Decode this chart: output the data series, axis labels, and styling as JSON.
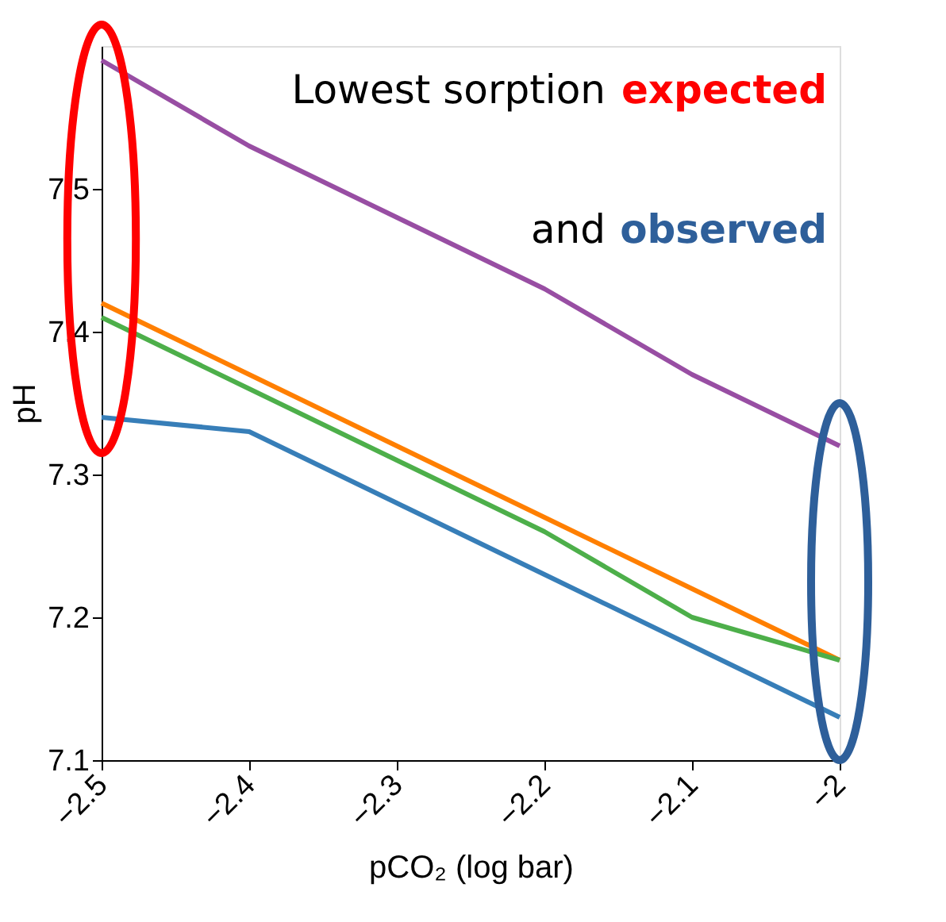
{
  "chart_data": {
    "type": "line",
    "xlabel": "pCO₂ (log bar)",
    "ylabel": "pH",
    "x": [
      -2.5,
      -2.4,
      -2.3,
      -2.2,
      -2.1,
      -2.0
    ],
    "series": [
      {
        "color": "#984ea3",
        "values": [
          7.59,
          7.53,
          7.48,
          7.43,
          7.37,
          7.32
        ]
      },
      {
        "color": "#ff7f00",
        "values": [
          7.42,
          7.37,
          7.32,
          7.27,
          7.22,
          7.17
        ]
      },
      {
        "color": "#4daf4a",
        "values": [
          7.41,
          7.36,
          7.31,
          7.26,
          7.2,
          7.17
        ]
      },
      {
        "color": "#377eb8",
        "values": [
          7.34,
          7.33,
          7.28,
          7.23,
          7.18,
          7.13
        ]
      }
    ],
    "xlim": [
      -2.5,
      -2.0
    ],
    "xticks": [
      -2.5,
      -2.4,
      -2.3,
      -2.2,
      -2.1,
      -2.0
    ],
    "ylim": [
      7.1,
      7.6
    ],
    "yticks": [
      7.1,
      7.2,
      7.3,
      7.4,
      7.5
    ],
    "annotations": [
      "Lowest sorption expected",
      "and observed"
    ],
    "grid": false,
    "legend": false,
    "marker": "none",
    "line_style": "solid"
  }
}
